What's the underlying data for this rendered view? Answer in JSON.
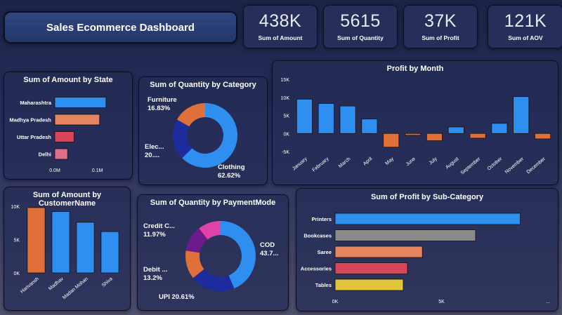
{
  "header": {
    "title": "Sales Ecommerce Dashboard"
  },
  "kpis": [
    {
      "value": "438K",
      "label": "Sum of Amount"
    },
    {
      "value": "5615",
      "label": "Sum of Quantity"
    },
    {
      "value": "37K",
      "label": "Sum of Profit"
    },
    {
      "value": "121K",
      "label": "Sum of AOV"
    }
  ],
  "colors": {
    "blue": "#2f8ff0",
    "orange": "#e0703a",
    "navy": "#1c2c9c",
    "red": "#d9455a",
    "salmon": "#e58560",
    "pink": "#e0708a",
    "gray": "#8a8a8a",
    "yellow": "#e3c53c",
    "purple": "#6d1a8a",
    "magenta": "#e043a8"
  },
  "chart_data": [
    {
      "id": "state",
      "type": "bar",
      "orientation": "horizontal",
      "title": "Sum of Amount by State",
      "categories": [
        "Maharashtra",
        "Madhya Pradesh",
        "Uttar Pradesh",
        "Delhi"
      ],
      "values": [
        0.12,
        0.105,
        0.045,
        0.03
      ],
      "bar_colors": [
        "#2f8ff0",
        "#e58560",
        "#d9455a",
        "#e0708a"
      ],
      "xlim": [
        0,
        0.14
      ],
      "xticks": [
        {
          "v": 0.0,
          "label": "0.0M"
        },
        {
          "v": 0.1,
          "label": "0.1M"
        }
      ]
    },
    {
      "id": "category",
      "type": "pie",
      "donut": true,
      "title": "Sum of Quantity by Category",
      "slices": [
        {
          "name": "Clothing",
          "value": 62.62,
          "label": "Clothing",
          "pct_text": "62.62%",
          "color": "#2f8ff0"
        },
        {
          "name": "Electronics",
          "value": 20.55,
          "label": "Elec...",
          "pct_text": "20....",
          "color": "#1c2c9c"
        },
        {
          "name": "Furniture",
          "value": 16.83,
          "label": "Furniture",
          "pct_text": "16.83%",
          "color": "#e0703a"
        }
      ]
    },
    {
      "id": "month",
      "type": "bar",
      "title": "Profit by Month",
      "categories": [
        "January",
        "February",
        "March",
        "April",
        "May",
        "June",
        "July",
        "August",
        "September",
        "October",
        "November",
        "December"
      ],
      "values": [
        9500,
        8300,
        7600,
        4000,
        -3800,
        -500,
        -2000,
        1800,
        -1300,
        2800,
        10200,
        -1500
      ],
      "ylim": [
        -5000,
        15000
      ],
      "yticks": [
        {
          "v": -5000,
          "label": "-5K"
        },
        {
          "v": 0,
          "label": "0K"
        },
        {
          "v": 5000,
          "label": "5K"
        },
        {
          "v": 10000,
          "label": "10K"
        },
        {
          "v": 15000,
          "label": "15K"
        }
      ],
      "positive_color": "#2f8ff0",
      "negative_color": "#e0703a"
    },
    {
      "id": "customer",
      "type": "bar",
      "title": "Sum of Amount by CustomerName",
      "categories": [
        "Harivansh",
        "Madhav",
        "Madan Mohan",
        "Shiva"
      ],
      "values": [
        9800,
        9200,
        7600,
        6200
      ],
      "bar_colors": [
        "#e0703a",
        "#2f8ff0",
        "#2f8ff0",
        "#2f8ff0"
      ],
      "ylim": [
        0,
        10000
      ],
      "yticks": [
        {
          "v": 0,
          "label": "0K"
        },
        {
          "v": 5000,
          "label": "5K"
        },
        {
          "v": 10000,
          "label": "10K"
        }
      ]
    },
    {
      "id": "payment",
      "type": "pie",
      "donut": true,
      "title": "Sum of Quantity by PaymentMode",
      "slices": [
        {
          "name": "COD",
          "value": 43.7,
          "label": "COD",
          "pct_text": "43.7...",
          "color": "#2f8ff0"
        },
        {
          "name": "UPI",
          "value": 20.61,
          "label": "UPI",
          "pct_text": "20.61%",
          "color": "#1c2c9c"
        },
        {
          "name": "Debit Card",
          "value": 13.2,
          "label": "Debit ...",
          "pct_text": "13.2%",
          "color": "#e0703a"
        },
        {
          "name": "Credit Card",
          "value": 11.97,
          "label": "Credit C...",
          "pct_text": "11.97%",
          "color": "#6d1a8a"
        },
        {
          "name": "EMI",
          "value": 10.52,
          "label": "",
          "pct_text": "",
          "color": "#e043a8"
        }
      ]
    },
    {
      "id": "subcategory",
      "type": "bar",
      "orientation": "horizontal",
      "title": "Sum of Profit by Sub-Category",
      "categories": [
        "Printers",
        "Bookcases",
        "Saree",
        "Accessories",
        "Tables"
      ],
      "values": [
        8700,
        6600,
        4100,
        3400,
        3200
      ],
      "bar_colors": [
        "#2f8ff0",
        "#8a8a8a",
        "#e58560",
        "#d9455a",
        "#e3c53c"
      ],
      "xlim": [
        0,
        10000
      ],
      "xticks": [
        {
          "v": 0,
          "label": "0K"
        },
        {
          "v": 5000,
          "label": "5K"
        },
        {
          "v": 10000,
          "label": "..."
        }
      ]
    }
  ]
}
